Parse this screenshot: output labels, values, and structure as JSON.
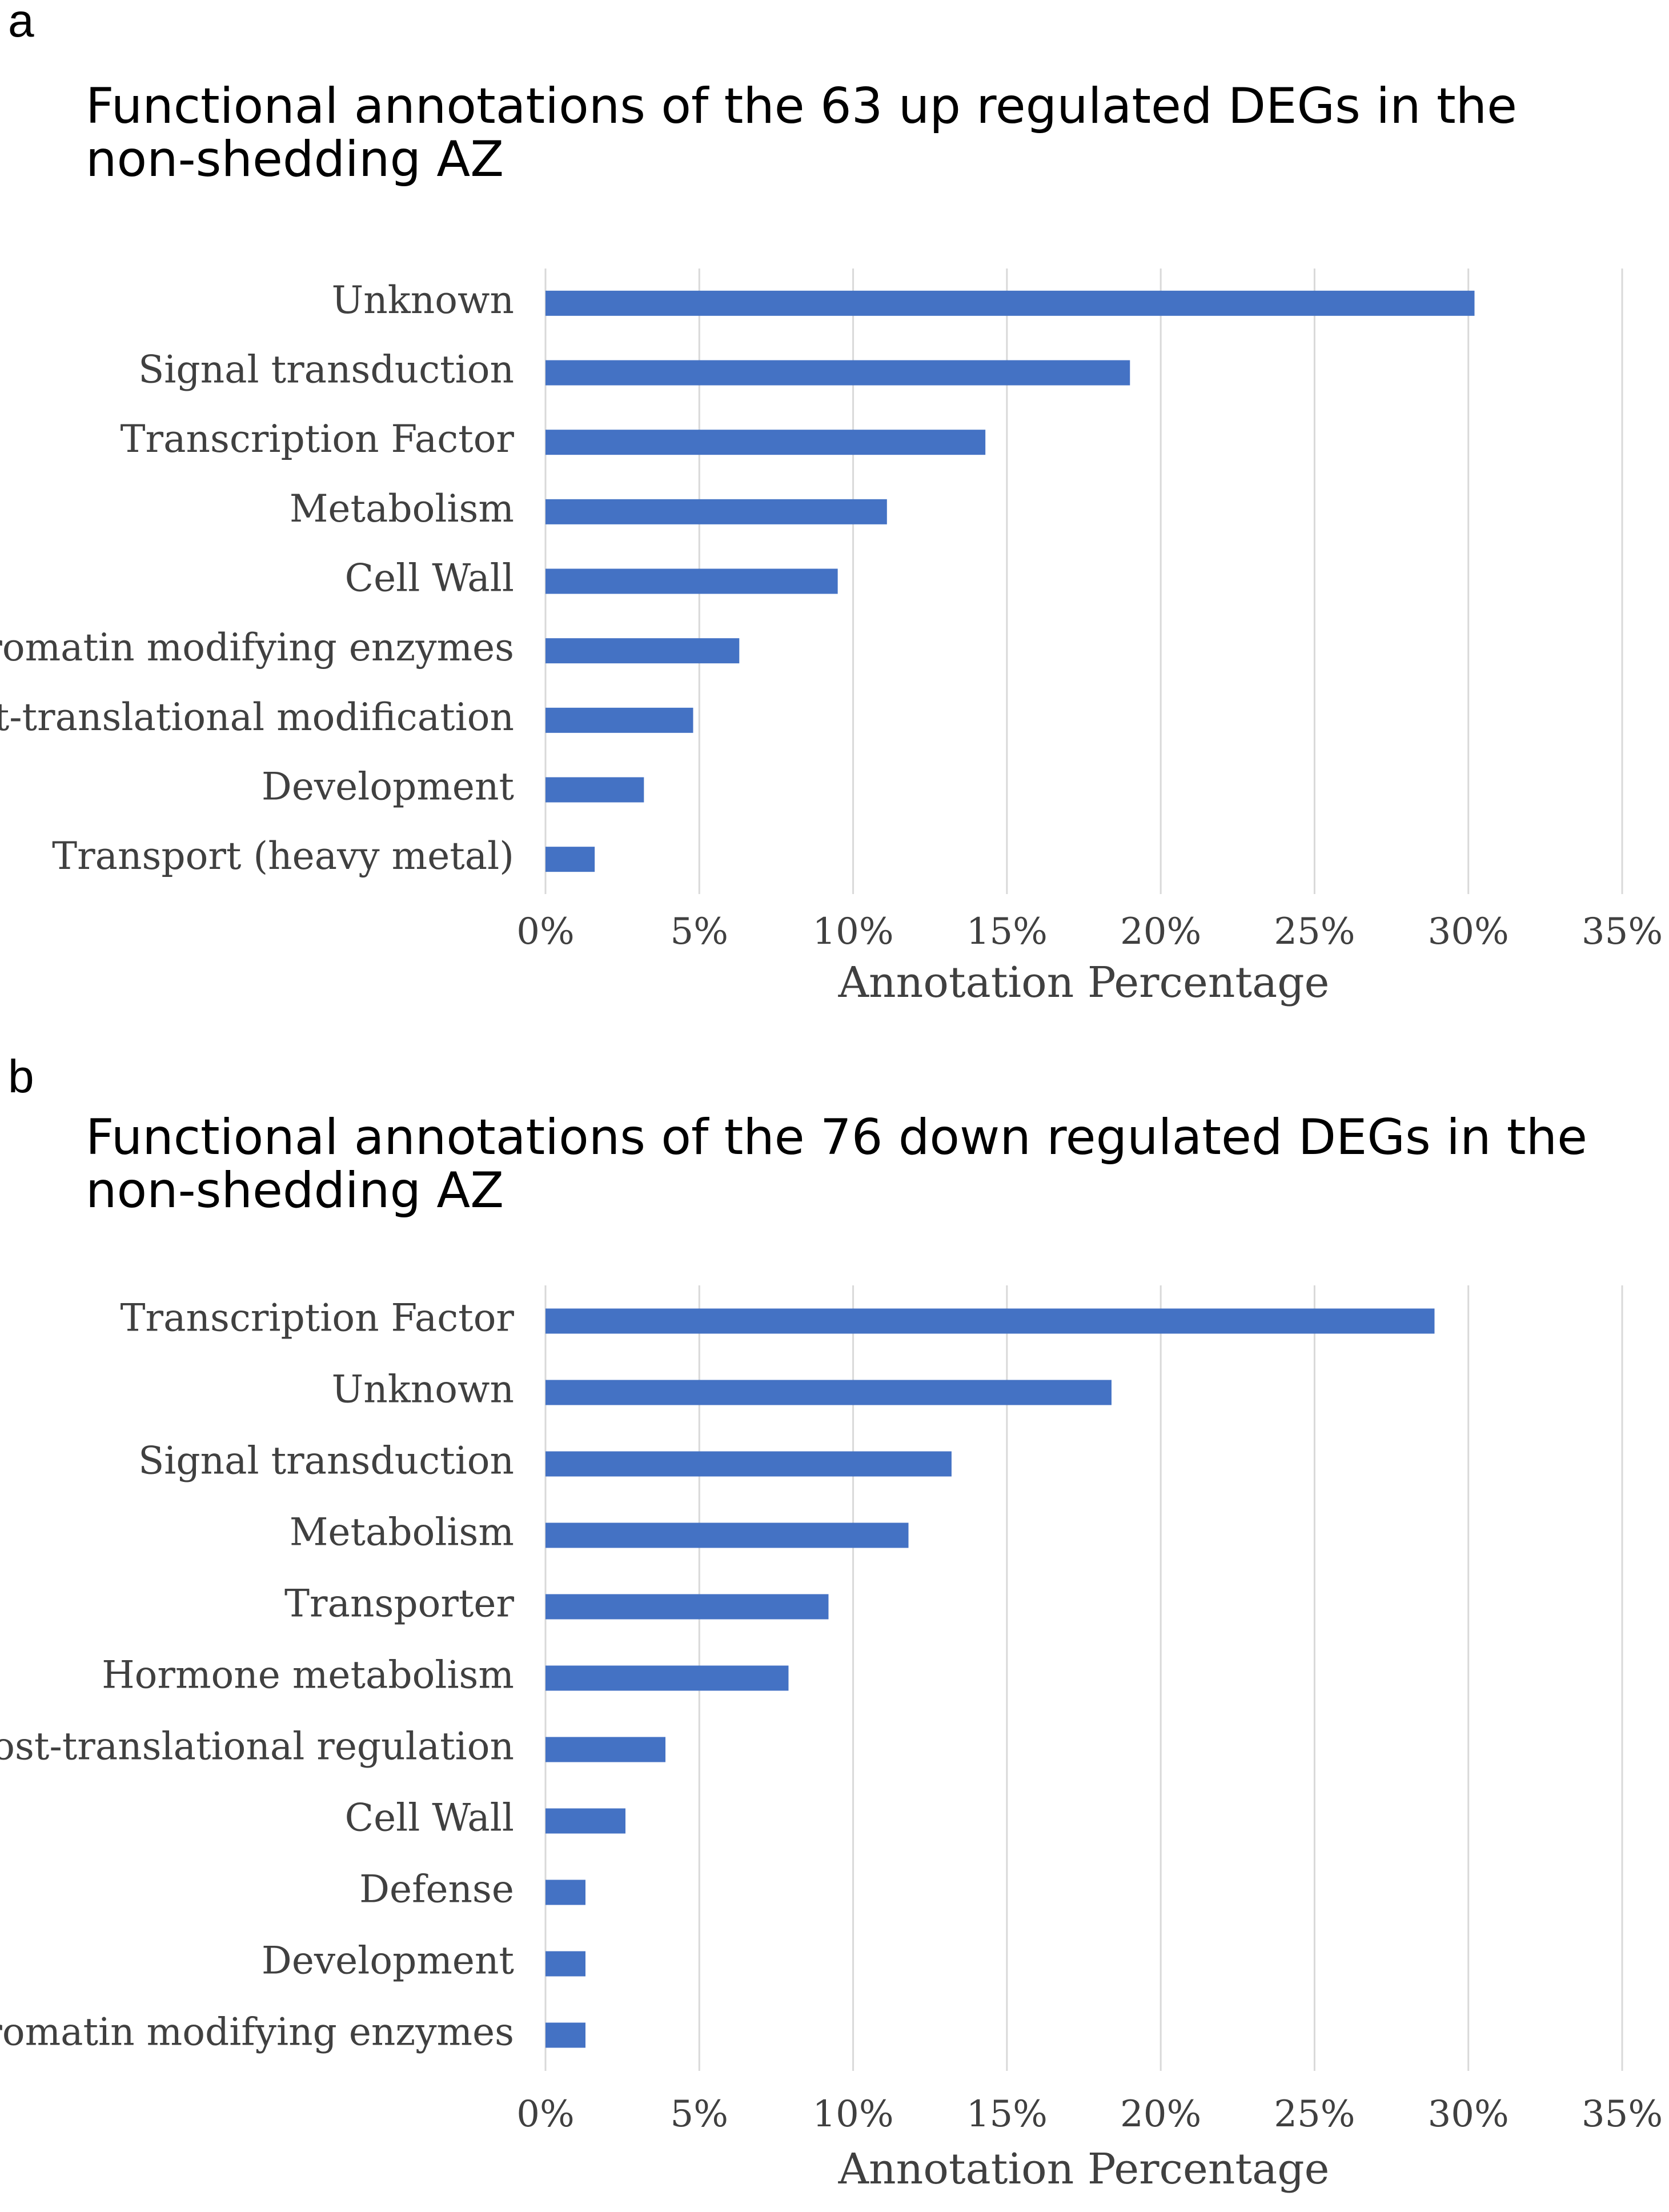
{
  "panels": [
    {
      "letter": "a",
      "title": "Functional annotations of the 63 up regulated DEGs in the\nnon-shedding AZ"
    },
    {
      "letter": "b",
      "title": "Functional annotations of the 76 down regulated DEGs in the\nnon-shedding AZ"
    }
  ],
  "colors": {
    "bar": "#4472c4",
    "grid": "#d9d9d9",
    "axis_text": "#404040"
  },
  "chart_data": [
    {
      "type": "bar",
      "orientation": "horizontal",
      "title": "Functional annotations of the 63 up regulated DEGs in the non-shedding AZ",
      "categories": [
        "Unknown",
        "Signal transduction",
        "Transcription Factor",
        "Metabolism",
        "Cell Wall",
        "Chromatin modifying enzymes",
        "Post-translational modification",
        "Development",
        "Transport (heavy metal)"
      ],
      "values": [
        30.2,
        19.0,
        14.3,
        11.1,
        9.5,
        6.3,
        4.8,
        3.2,
        1.6
      ],
      "xlabel": "Annotation Percentage",
      "ylabel": "",
      "xlim": [
        0,
        35
      ],
      "ticks": [
        0,
        5,
        10,
        15,
        20,
        25,
        30,
        35
      ],
      "tick_labels": [
        "0%",
        "5%",
        "10%",
        "15%",
        "20%",
        "25%",
        "30%",
        "35%"
      ],
      "grid": true
    },
    {
      "type": "bar",
      "orientation": "horizontal",
      "title": "Functional annotations of the 76 down regulated DEGs in the non-shedding AZ",
      "categories": [
        "Transcription Factor",
        "Unknown",
        "Signal transduction",
        "Metabolism",
        "Transporter",
        "Hormone metabolism",
        "Post-translational regulation",
        "Cell Wall",
        "Defense",
        "Development",
        "Chromatin modifying enzymes"
      ],
      "values": [
        28.9,
        18.4,
        13.2,
        11.8,
        9.2,
        7.9,
        3.9,
        2.6,
        1.3,
        1.3,
        1.3
      ],
      "xlabel": "Annotation Percentage",
      "ylabel": "",
      "xlim": [
        0,
        35
      ],
      "ticks": [
        0,
        5,
        10,
        15,
        20,
        25,
        30,
        35
      ],
      "tick_labels": [
        "0%",
        "5%",
        "10%",
        "15%",
        "20%",
        "25%",
        "30%",
        "35%"
      ],
      "grid": true
    }
  ]
}
